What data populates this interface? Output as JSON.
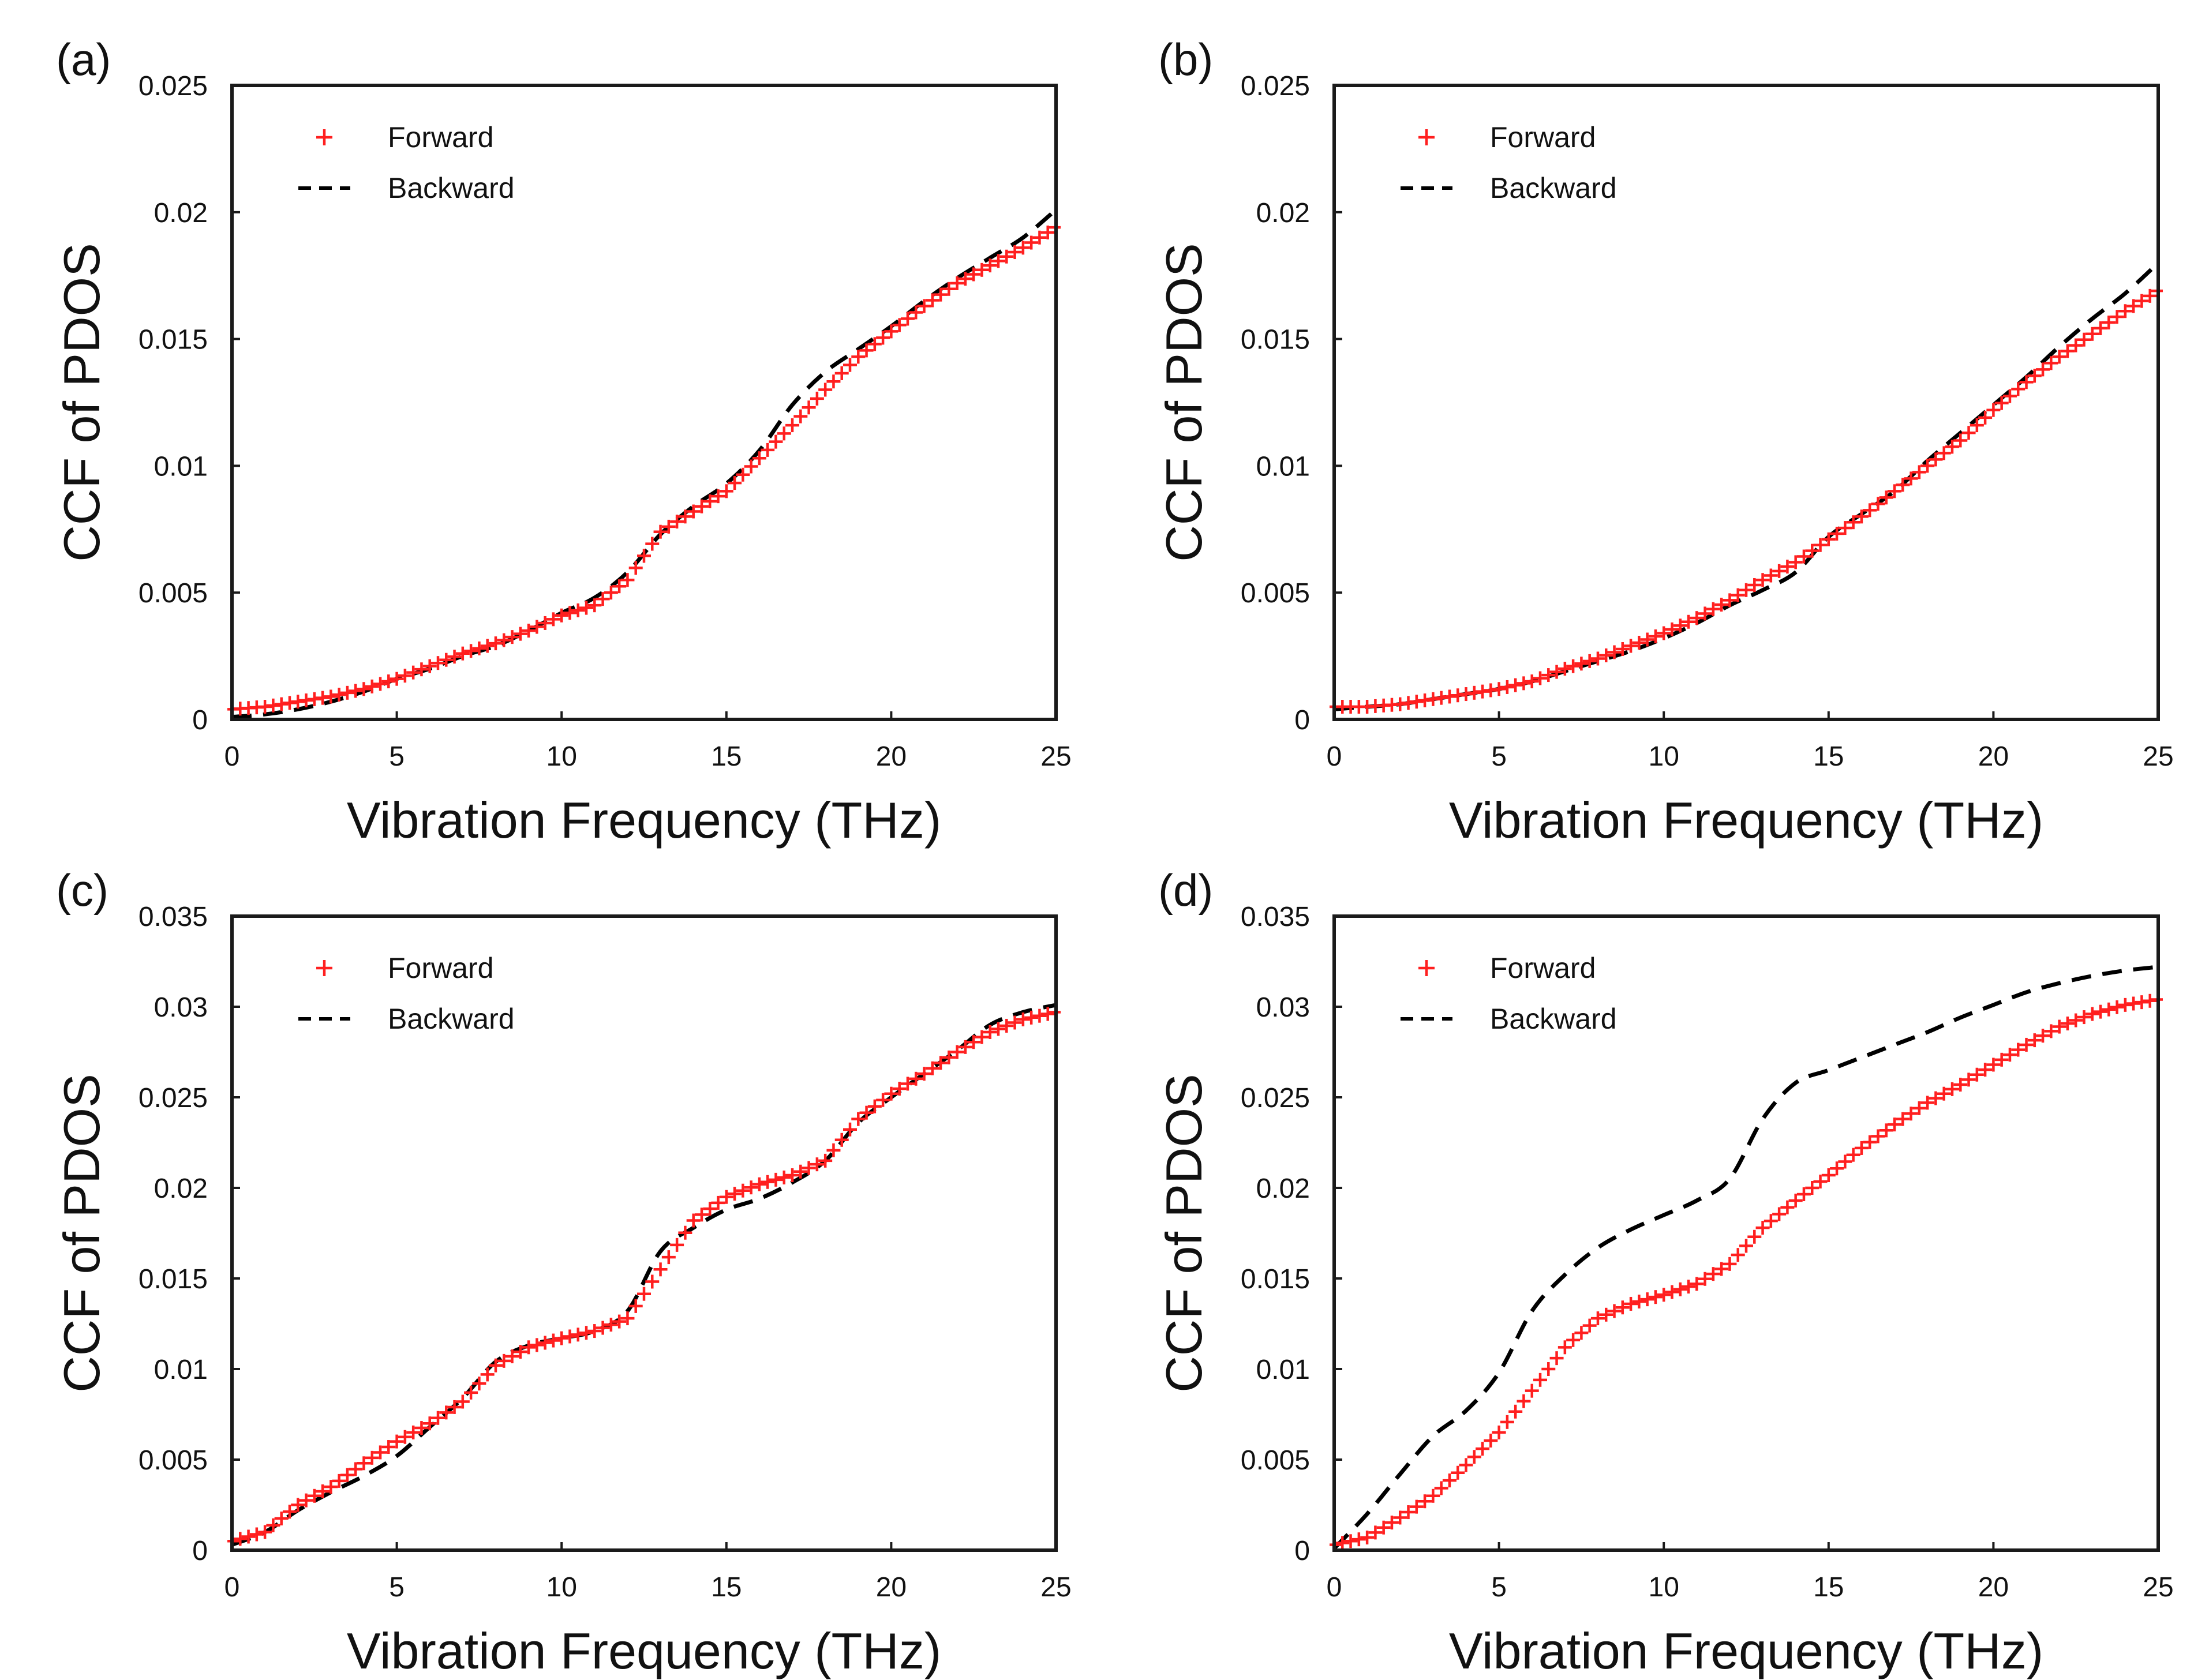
{
  "colors": {
    "forward": "#ff1f1f",
    "backward": "#000000",
    "axis": "#1a1a1a",
    "text": "#111111",
    "background": "#ffffff"
  },
  "chart_data": [
    {
      "panel_label": "(a)",
      "type": "line",
      "xlabel": "Vibration Frequency (THz)",
      "ylabel": "CCF of PDOS",
      "xlim": [
        0,
        25
      ],
      "ylim": [
        0,
        0.025
      ],
      "xticks": [
        0,
        5,
        10,
        15,
        20,
        25
      ],
      "xtick_labels": [
        "0",
        "5",
        "10",
        "15",
        "20",
        "25"
      ],
      "yticks": [
        0,
        0.005,
        0.01,
        0.015,
        0.02,
        0.025
      ],
      "ytick_labels": [
        "0",
        "0.005",
        "0.01",
        "0.015",
        "0.02",
        "0.025"
      ],
      "grid": false,
      "legend_position": "top-left",
      "series": [
        {
          "name": "Forward",
          "style": "plus-markers",
          "x": [
            0,
            1,
            2,
            3,
            4,
            5,
            6,
            7,
            8,
            9,
            10,
            11,
            12,
            13,
            14,
            15,
            16,
            17,
            18,
            19,
            20,
            21,
            22,
            23,
            24,
            25
          ],
          "y": [
            0.0004,
            0.0005,
            0.0007,
            0.0009,
            0.0012,
            0.0016,
            0.0021,
            0.0026,
            0.003,
            0.0035,
            0.0041,
            0.0045,
            0.0055,
            0.0074,
            0.0082,
            0.009,
            0.0103,
            0.0116,
            0.013,
            0.0143,
            0.0153,
            0.0163,
            0.0172,
            0.0179,
            0.0186,
            0.0194
          ]
        },
        {
          "name": "Backward",
          "style": "dashed",
          "x": [
            0,
            1,
            2,
            3,
            4,
            5,
            6,
            7,
            8,
            9,
            10,
            11,
            12,
            13,
            14,
            15,
            16,
            17,
            18,
            19,
            20,
            21,
            22,
            23,
            24,
            25
          ],
          "y": [
            0.0001,
            0.0002,
            0.0004,
            0.0007,
            0.0011,
            0.0016,
            0.002,
            0.0025,
            0.0029,
            0.0035,
            0.0042,
            0.0048,
            0.0058,
            0.0073,
            0.0084,
            0.0093,
            0.0106,
            0.0124,
            0.0137,
            0.0146,
            0.0155,
            0.0165,
            0.0174,
            0.0182,
            0.019,
            0.0201
          ]
        }
      ]
    },
    {
      "panel_label": "(b)",
      "type": "line",
      "xlabel": "Vibration Frequency (THz)",
      "ylabel": "CCF of PDOS",
      "xlim": [
        0,
        25
      ],
      "ylim": [
        0,
        0.025
      ],
      "xticks": [
        0,
        5,
        10,
        15,
        20,
        25
      ],
      "xtick_labels": [
        "0",
        "5",
        "10",
        "15",
        "20",
        "25"
      ],
      "yticks": [
        0,
        0.005,
        0.01,
        0.015,
        0.02,
        0.025
      ],
      "ytick_labels": [
        "0",
        "0.005",
        "0.01",
        "0.015",
        "0.02",
        "0.025"
      ],
      "grid": false,
      "legend_position": "top-left",
      "series": [
        {
          "name": "Forward",
          "style": "plus-markers",
          "x": [
            0,
            1,
            2,
            3,
            4,
            5,
            6,
            7,
            8,
            9,
            10,
            11,
            12,
            13,
            14,
            15,
            16,
            17,
            18,
            19,
            20,
            21,
            22,
            23,
            24,
            25
          ],
          "y": [
            0.0005,
            0.0005,
            0.0006,
            0.0008,
            0.001,
            0.0012,
            0.0015,
            0.002,
            0.0024,
            0.0029,
            0.0034,
            0.004,
            0.0047,
            0.0055,
            0.0062,
            0.0071,
            0.008,
            0.009,
            0.01,
            0.011,
            0.0122,
            0.0133,
            0.0143,
            0.0152,
            0.0161,
            0.0169
          ]
        },
        {
          "name": "Backward",
          "style": "dashed",
          "x": [
            0,
            1,
            2,
            3,
            4,
            5,
            6,
            7,
            8,
            9,
            10,
            11,
            12,
            13,
            14,
            15,
            16,
            17,
            18,
            19,
            20,
            21,
            22,
            23,
            24,
            25
          ],
          "y": [
            0.0004,
            0.0005,
            0.0006,
            0.0008,
            0.001,
            0.0012,
            0.0015,
            0.0019,
            0.0023,
            0.0027,
            0.0032,
            0.0038,
            0.0045,
            0.0051,
            0.0058,
            0.0072,
            0.0081,
            0.009,
            0.0102,
            0.0113,
            0.0124,
            0.0135,
            0.0147,
            0.0158,
            0.0168,
            0.018
          ]
        }
      ]
    },
    {
      "panel_label": "(c)",
      "type": "line",
      "xlabel": "Vibration Frequency (THz)",
      "ylabel": "CCF of PDOS",
      "xlim": [
        0,
        25
      ],
      "ylim": [
        0,
        0.035
      ],
      "xticks": [
        0,
        5,
        10,
        15,
        20,
        25
      ],
      "xtick_labels": [
        "0",
        "5",
        "10",
        "15",
        "20",
        "25"
      ],
      "yticks": [
        0,
        0.005,
        0.01,
        0.015,
        0.02,
        0.025,
        0.03,
        0.035
      ],
      "ytick_labels": [
        "0",
        "0.005",
        "0.01",
        "0.015",
        "0.02",
        "0.025",
        "0.03",
        "0.035"
      ],
      "grid": false,
      "legend_position": "top-left",
      "series": [
        {
          "name": "Forward",
          "style": "plus-markers",
          "x": [
            0,
            1,
            2,
            3,
            4,
            5,
            6,
            7,
            8,
            9,
            10,
            11,
            12,
            13,
            14,
            15,
            16,
            17,
            18,
            19,
            20,
            21,
            22,
            23,
            24,
            25
          ],
          "y": [
            0.0005,
            0.001,
            0.0025,
            0.0035,
            0.0048,
            0.006,
            0.007,
            0.0082,
            0.0102,
            0.0112,
            0.0117,
            0.0121,
            0.0128,
            0.0155,
            0.0182,
            0.0195,
            0.0202,
            0.0207,
            0.0215,
            0.0238,
            0.0252,
            0.0263,
            0.0275,
            0.0286,
            0.0293,
            0.0297
          ]
        },
        {
          "name": "Backward",
          "style": "dashed",
          "x": [
            0,
            1,
            2,
            3,
            4,
            5,
            6,
            7,
            8,
            9,
            10,
            11,
            12,
            13,
            14,
            15,
            16,
            17,
            18,
            19,
            20,
            21,
            22,
            23,
            24,
            25
          ],
          "y": [
            0.0003,
            0.001,
            0.0022,
            0.0032,
            0.0041,
            0.0052,
            0.0068,
            0.0084,
            0.0104,
            0.0113,
            0.0117,
            0.0121,
            0.0132,
            0.0165,
            0.0178,
            0.0188,
            0.0194,
            0.0203,
            0.0215,
            0.0236,
            0.025,
            0.0263,
            0.0276,
            0.029,
            0.0297,
            0.0301
          ]
        }
      ]
    },
    {
      "panel_label": "(d)",
      "type": "line",
      "xlabel": "Vibration Frequency (THz)",
      "ylabel": "CCF of PDOS",
      "xlim": [
        0,
        25
      ],
      "ylim": [
        0,
        0.035
      ],
      "xticks": [
        0,
        5,
        10,
        15,
        20,
        25
      ],
      "xtick_labels": [
        "0",
        "5",
        "10",
        "15",
        "20",
        "25"
      ],
      "yticks": [
        0,
        0.005,
        0.01,
        0.015,
        0.02,
        0.025,
        0.03,
        0.035
      ],
      "ytick_labels": [
        "0",
        "0.005",
        "0.01",
        "0.015",
        "0.02",
        "0.025",
        "0.03",
        "0.035"
      ],
      "grid": false,
      "legend_position": "top-left",
      "series": [
        {
          "name": "Forward",
          "style": "plus-markers",
          "x": [
            0,
            1,
            2,
            3,
            4,
            5,
            6,
            7,
            8,
            9,
            10,
            11,
            12,
            13,
            14,
            15,
            16,
            17,
            18,
            19,
            20,
            21,
            22,
            23,
            24,
            25
          ],
          "y": [
            0.0003,
            0.0007,
            0.0018,
            0.003,
            0.0047,
            0.0065,
            0.0088,
            0.0112,
            0.0128,
            0.0136,
            0.0141,
            0.0147,
            0.0158,
            0.0178,
            0.0193,
            0.0207,
            0.0222,
            0.0235,
            0.0247,
            0.0257,
            0.0268,
            0.0279,
            0.0289,
            0.0296,
            0.0301,
            0.0304
          ]
        },
        {
          "name": "Backward",
          "style": "dashed",
          "x": [
            0,
            1,
            2,
            3,
            4,
            5,
            6,
            7,
            8,
            9,
            10,
            11,
            12,
            13,
            14,
            15,
            16,
            17,
            18,
            19,
            20,
            21,
            22,
            23,
            24,
            25
          ],
          "y": [
            0.0001,
            0.002,
            0.0042,
            0.0063,
            0.0077,
            0.0098,
            0.0132,
            0.0152,
            0.0167,
            0.0177,
            0.0185,
            0.0193,
            0.0205,
            0.0238,
            0.0258,
            0.0265,
            0.0272,
            0.0279,
            0.0286,
            0.0294,
            0.0301,
            0.0308,
            0.0313,
            0.0317,
            0.032,
            0.0322
          ]
        }
      ]
    }
  ]
}
